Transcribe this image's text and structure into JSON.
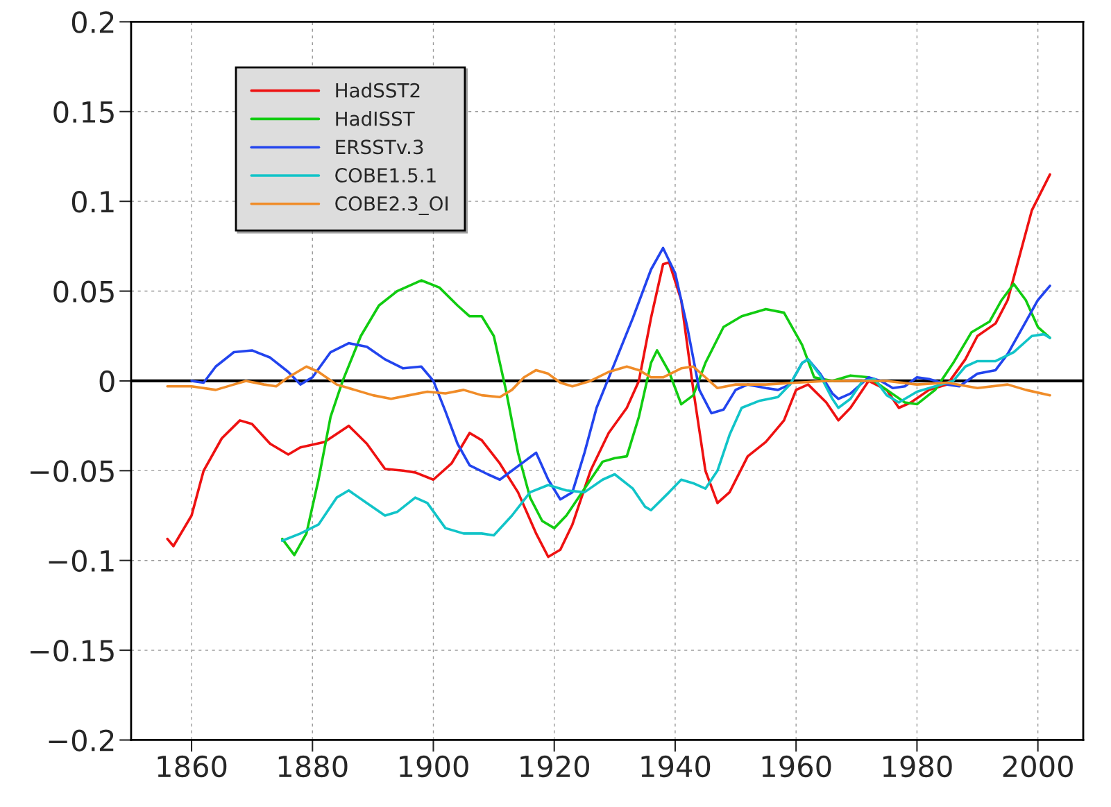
{
  "chart_data": {
    "type": "line",
    "xlim": [
      1850,
      2007.5
    ],
    "xticks": [
      1860,
      1880,
      1900,
      1920,
      1940,
      1960,
      1980,
      2000
    ],
    "ylim": [
      -0.2,
      0.2
    ],
    "yticks": [
      {
        "value": -0.2,
        "label": "−0.2"
      },
      {
        "value": -0.15,
        "label": "−0.15"
      },
      {
        "value": -0.1,
        "label": "−0.1"
      },
      {
        "value": -0.05,
        "label": "−0.05"
      },
      0,
      0.05,
      0.1,
      0.15,
      0.2
    ],
    "grid": true,
    "legend": "top left",
    "line_style": "solid",
    "marker": "none",
    "ref_lines": [
      {
        "axis": "y",
        "value": 0,
        "color": "#000000"
      }
    ],
    "series": [
      {
        "name": "HadSST2",
        "color": "#ee1111",
        "x": [
          1856,
          1857,
          1860,
          1862,
          1865,
          1868,
          1870,
          1873,
          1876,
          1878,
          1882,
          1886,
          1889,
          1892,
          1895,
          1897,
          1900,
          1903,
          1906,
          1908,
          1911,
          1914,
          1917,
          1919,
          1921,
          1923,
          1926,
          1929,
          1932,
          1934,
          1936,
          1938,
          1939,
          1941,
          1943,
          1945,
          1947,
          1949,
          1952,
          1955,
          1958,
          1960,
          1962,
          1965,
          1967,
          1969,
          1972,
          1975,
          1977,
          1979,
          1982,
          1985,
          1988,
          1990,
          1993,
          1995,
          1997,
          1999,
          2002
        ],
        "values": [
          -0.088,
          -0.092,
          -0.075,
          -0.05,
          -0.032,
          -0.022,
          -0.024,
          -0.035,
          -0.041,
          -0.037,
          -0.034,
          -0.025,
          -0.035,
          -0.049,
          -0.05,
          -0.051,
          -0.055,
          -0.046,
          -0.029,
          -0.033,
          -0.046,
          -0.062,
          -0.085,
          -0.098,
          -0.094,
          -0.08,
          -0.05,
          -0.029,
          -0.015,
          0.0,
          0.035,
          0.065,
          0.066,
          0.045,
          -0.005,
          -0.05,
          -0.068,
          -0.062,
          -0.042,
          -0.034,
          -0.022,
          -0.005,
          -0.002,
          -0.012,
          -0.022,
          -0.015,
          0.0,
          -0.005,
          -0.015,
          -0.012,
          -0.005,
          -0.002,
          0.012,
          0.025,
          0.032,
          0.045,
          0.07,
          0.095,
          0.115
        ]
      },
      {
        "name": "HadISST",
        "color": "#11cc11",
        "x": [
          1875,
          1877,
          1879,
          1881,
          1883,
          1885,
          1888,
          1891,
          1894,
          1898,
          1901,
          1904,
          1906,
          1908,
          1910,
          1912,
          1914,
          1916,
          1918,
          1920,
          1922,
          1924,
          1926,
          1928,
          1930,
          1932,
          1934,
          1936,
          1937,
          1939,
          1941,
          1943,
          1945,
          1948,
          1951,
          1955,
          1958,
          1961,
          1963,
          1966,
          1969,
          1972,
          1975,
          1978,
          1980,
          1983,
          1986,
          1989,
          1992,
          1994,
          1996,
          1998,
          2000,
          2002
        ],
        "values": [
          -0.088,
          -0.097,
          -0.085,
          -0.055,
          -0.02,
          0.0,
          0.025,
          0.042,
          0.05,
          0.056,
          0.052,
          0.042,
          0.036,
          0.036,
          0.025,
          -0.005,
          -0.04,
          -0.065,
          -0.078,
          -0.082,
          -0.075,
          -0.065,
          -0.055,
          -0.045,
          -0.043,
          -0.042,
          -0.02,
          0.01,
          0.017,
          0.005,
          -0.013,
          -0.008,
          0.01,
          0.03,
          0.036,
          0.04,
          0.038,
          0.02,
          0.002,
          0.0,
          0.003,
          0.002,
          -0.005,
          -0.012,
          -0.013,
          -0.005,
          0.01,
          0.027,
          0.033,
          0.045,
          0.054,
          0.045,
          0.03,
          0.024
        ]
      },
      {
        "name": "ERSSTv.3",
        "color": "#2244ee",
        "x": [
          1860,
          1862,
          1864,
          1867,
          1870,
          1873,
          1876,
          1878,
          1880,
          1883,
          1886,
          1889,
          1892,
          1895,
          1898,
          1900,
          1902,
          1904,
          1906,
          1909,
          1911,
          1913,
          1915,
          1917,
          1919,
          1921,
          1923,
          1925,
          1927,
          1930,
          1933,
          1936,
          1938,
          1940,
          1942,
          1944,
          1946,
          1948,
          1950,
          1952,
          1955,
          1957,
          1959,
          1961,
          1962,
          1964,
          1966,
          1967,
          1969,
          1972,
          1974,
          1976,
          1978,
          1980,
          1982,
          1985,
          1987,
          1990,
          1993,
          1995,
          1998,
          2000,
          2002
        ],
        "values": [
          0.0,
          -0.001,
          0.008,
          0.016,
          0.017,
          0.013,
          0.005,
          -0.002,
          0.002,
          0.016,
          0.021,
          0.019,
          0.012,
          0.007,
          0.008,
          0.0,
          -0.017,
          -0.035,
          -0.047,
          -0.052,
          -0.055,
          -0.05,
          -0.045,
          -0.04,
          -0.055,
          -0.066,
          -0.062,
          -0.04,
          -0.015,
          0.01,
          0.035,
          0.062,
          0.074,
          0.06,
          0.03,
          -0.005,
          -0.018,
          -0.016,
          -0.005,
          -0.002,
          -0.004,
          -0.005,
          -0.002,
          0.01,
          0.012,
          0.004,
          -0.007,
          -0.01,
          -0.007,
          0.002,
          0.0,
          -0.004,
          -0.003,
          0.002,
          0.001,
          -0.002,
          -0.003,
          0.004,
          0.006,
          0.015,
          0.033,
          0.045,
          0.053
        ]
      },
      {
        "name": "COBE1.5.1",
        "color": "#11c4c8",
        "x": [
          1875,
          1878,
          1881,
          1884,
          1886,
          1889,
          1892,
          1894,
          1897,
          1899,
          1902,
          1905,
          1908,
          1910,
          1913,
          1916,
          1919,
          1922,
          1925,
          1928,
          1930,
          1933,
          1935,
          1936,
          1939,
          1941,
          1943,
          1945,
          1947,
          1949,
          1951,
          1954,
          1957,
          1959,
          1961,
          1962,
          1964,
          1966,
          1967,
          1969,
          1971,
          1973,
          1975,
          1977,
          1980,
          1983,
          1986,
          1988,
          1990,
          1993,
          1996,
          1999,
          2001,
          2002
        ],
        "values": [
          -0.089,
          -0.085,
          -0.08,
          -0.065,
          -0.061,
          -0.068,
          -0.075,
          -0.073,
          -0.065,
          -0.068,
          -0.082,
          -0.085,
          -0.085,
          -0.086,
          -0.075,
          -0.062,
          -0.058,
          -0.061,
          -0.062,
          -0.055,
          -0.052,
          -0.06,
          -0.07,
          -0.072,
          -0.062,
          -0.055,
          -0.057,
          -0.06,
          -0.05,
          -0.03,
          -0.015,
          -0.011,
          -0.009,
          -0.002,
          0.01,
          0.012,
          0.003,
          -0.01,
          -0.015,
          -0.01,
          0.0,
          0.001,
          -0.008,
          -0.012,
          -0.006,
          -0.003,
          0.0,
          0.008,
          0.011,
          0.011,
          0.016,
          0.025,
          0.026,
          0.024
        ]
      },
      {
        "name": "COBE2.3_OI",
        "color": "#f08c28",
        "x": [
          1856,
          1860,
          1864,
          1867,
          1869,
          1872,
          1874,
          1876,
          1879,
          1881,
          1884,
          1887,
          1890,
          1893,
          1896,
          1899,
          1902,
          1905,
          1908,
          1911,
          1913,
          1915,
          1917,
          1919,
          1921,
          1923,
          1926,
          1929,
          1932,
          1934,
          1936,
          1938,
          1941,
          1943,
          1945,
          1947,
          1950,
          1955,
          1960,
          1965,
          1970,
          1975,
          1980,
          1985,
          1990,
          1995,
          1998,
          2002
        ],
        "values": [
          -0.003,
          -0.003,
          -0.005,
          -0.002,
          0.0,
          -0.002,
          -0.003,
          0.002,
          0.008,
          0.005,
          -0.002,
          -0.005,
          -0.008,
          -0.01,
          -0.008,
          -0.006,
          -0.007,
          -0.005,
          -0.008,
          -0.009,
          -0.005,
          0.002,
          0.006,
          0.004,
          -0.001,
          -0.003,
          0.0,
          0.005,
          0.008,
          0.006,
          0.002,
          0.002,
          0.007,
          0.008,
          0.002,
          -0.004,
          -0.002,
          -0.002,
          -0.001,
          0.0,
          0.0,
          0.0,
          -0.002,
          -0.001,
          -0.004,
          -0.002,
          -0.005,
          -0.008
        ]
      }
    ]
  }
}
